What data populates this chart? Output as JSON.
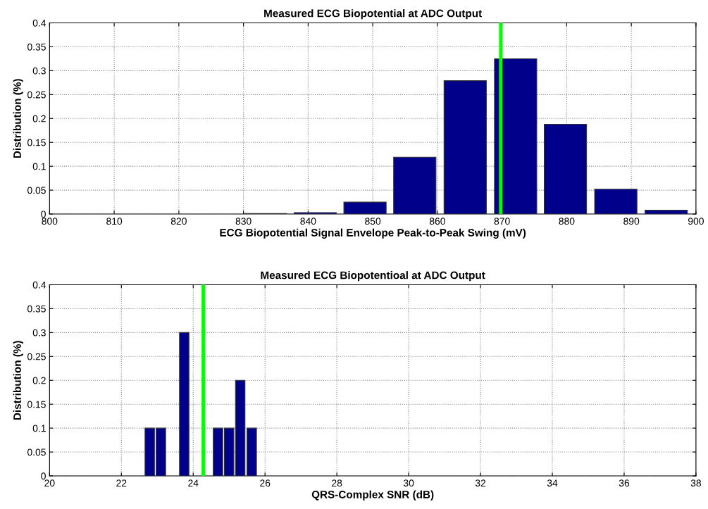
{
  "chart_data": [
    {
      "type": "bar",
      "title": "Measured ECG Biopotential at ADC Output",
      "xlabel": "ECG Biopotential Signal Envelope Peak-to-Peak Swing (mV)",
      "ylabel": "Distribution (%)",
      "x": [
        833.4,
        841.1,
        848.8,
        856.5,
        864.3,
        872.1,
        879.8,
        887.6,
        895.4
      ],
      "series": [
        {
          "color": "#00008b",
          "values": [
            0.001,
            0.003,
            0.025,
            0.119,
            0.279,
            0.325,
            0.188,
            0.052,
            0.008
          ]
        }
      ],
      "xlim": [
        800,
        900
      ],
      "xticks": [
        800,
        810,
        820,
        830,
        840,
        850,
        860,
        870,
        880,
        890,
        900
      ],
      "ylim": [
        0,
        0.4
      ],
      "yticks": [
        0,
        0.05,
        0.1,
        0.15,
        0.2,
        0.25,
        0.3,
        0.35,
        0.4
      ],
      "grid": true,
      "ref_lines": [
        {
          "axis": "x",
          "value": 869.8,
          "color": "#00ff00"
        }
      ]
    },
    {
      "type": "bar",
      "title": "Measured ECG Biopotentioal at ADC Output",
      "xlabel": "QRS-Complex SNR (dB)",
      "ylabel": "Distribution (%)",
      "x": [
        22.79,
        23.1,
        23.75,
        24.69,
        25.0,
        25.31,
        25.63
      ],
      "series": [
        {
          "color": "#00008b",
          "values": [
            0.1,
            0.1,
            0.3,
            0.1,
            0.1,
            0.2,
            0.1
          ]
        }
      ],
      "xlim": [
        20,
        38
      ],
      "xticks": [
        20,
        22,
        24,
        26,
        28,
        30,
        32,
        34,
        36,
        38
      ],
      "ylim": [
        0,
        0.4
      ],
      "yticks": [
        0,
        0.05,
        0.1,
        0.15,
        0.2,
        0.25,
        0.3,
        0.35,
        0.4
      ],
      "grid": true,
      "ref_lines": [
        {
          "axis": "x",
          "value": 24.28,
          "color": "#00ff00"
        }
      ]
    }
  ]
}
